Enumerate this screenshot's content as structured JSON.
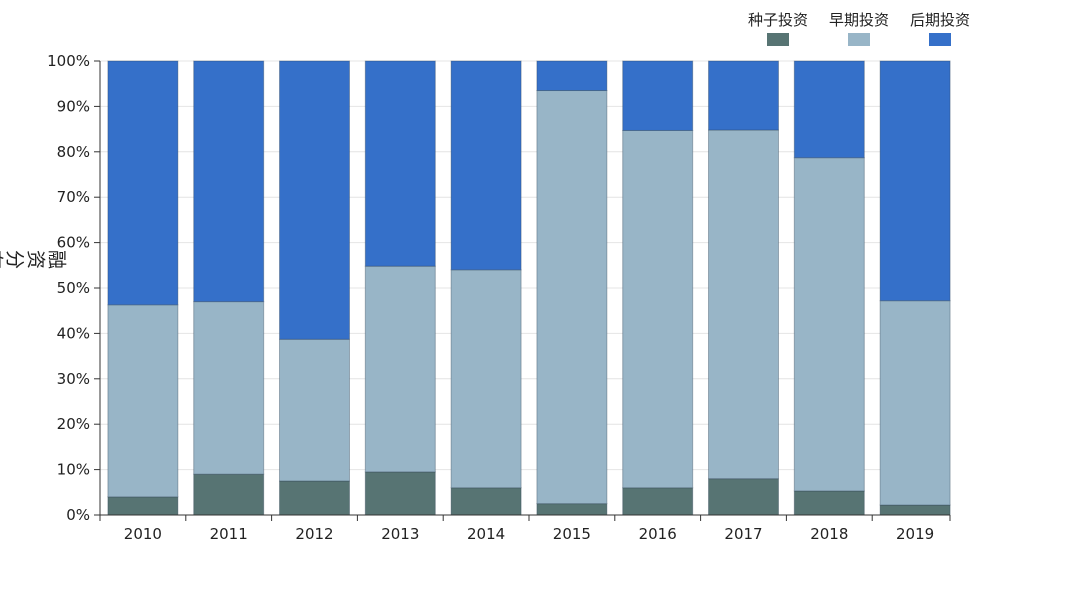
{
  "chart_data": {
    "type": "bar",
    "stacked": "percent",
    "categories": [
      "2010",
      "2011",
      "2012",
      "2013",
      "2014",
      "2015",
      "2016",
      "2017",
      "2018",
      "2019"
    ],
    "series": [
      {
        "name": "种子投资",
        "color": "#577473",
        "values": [
          4.0,
          9.0,
          7.5,
          9.5,
          6.0,
          2.5,
          6.0,
          8.0,
          5.3,
          2.2
        ]
      },
      {
        "name": "早期投资",
        "color": "#98b5c7",
        "values": [
          42.3,
          38.0,
          31.2,
          45.3,
          48.0,
          91.0,
          78.7,
          76.8,
          73.4,
          45.0
        ]
      },
      {
        "name": "后期投资",
        "color": "#3570c9",
        "values": [
          53.7,
          53.0,
          61.3,
          45.2,
          46.0,
          6.5,
          15.3,
          15.2,
          21.3,
          52.8
        ]
      }
    ],
    "ylabel": "融资分布",
    "xlabel": "",
    "ylim": [
      0,
      100
    ],
    "yticks": [
      "0%",
      "10%",
      "20%",
      "30%",
      "40%",
      "50%",
      "60%",
      "70%",
      "80%",
      "90%",
      "100%"
    ],
    "legend_position": "top-right",
    "grid": true
  }
}
